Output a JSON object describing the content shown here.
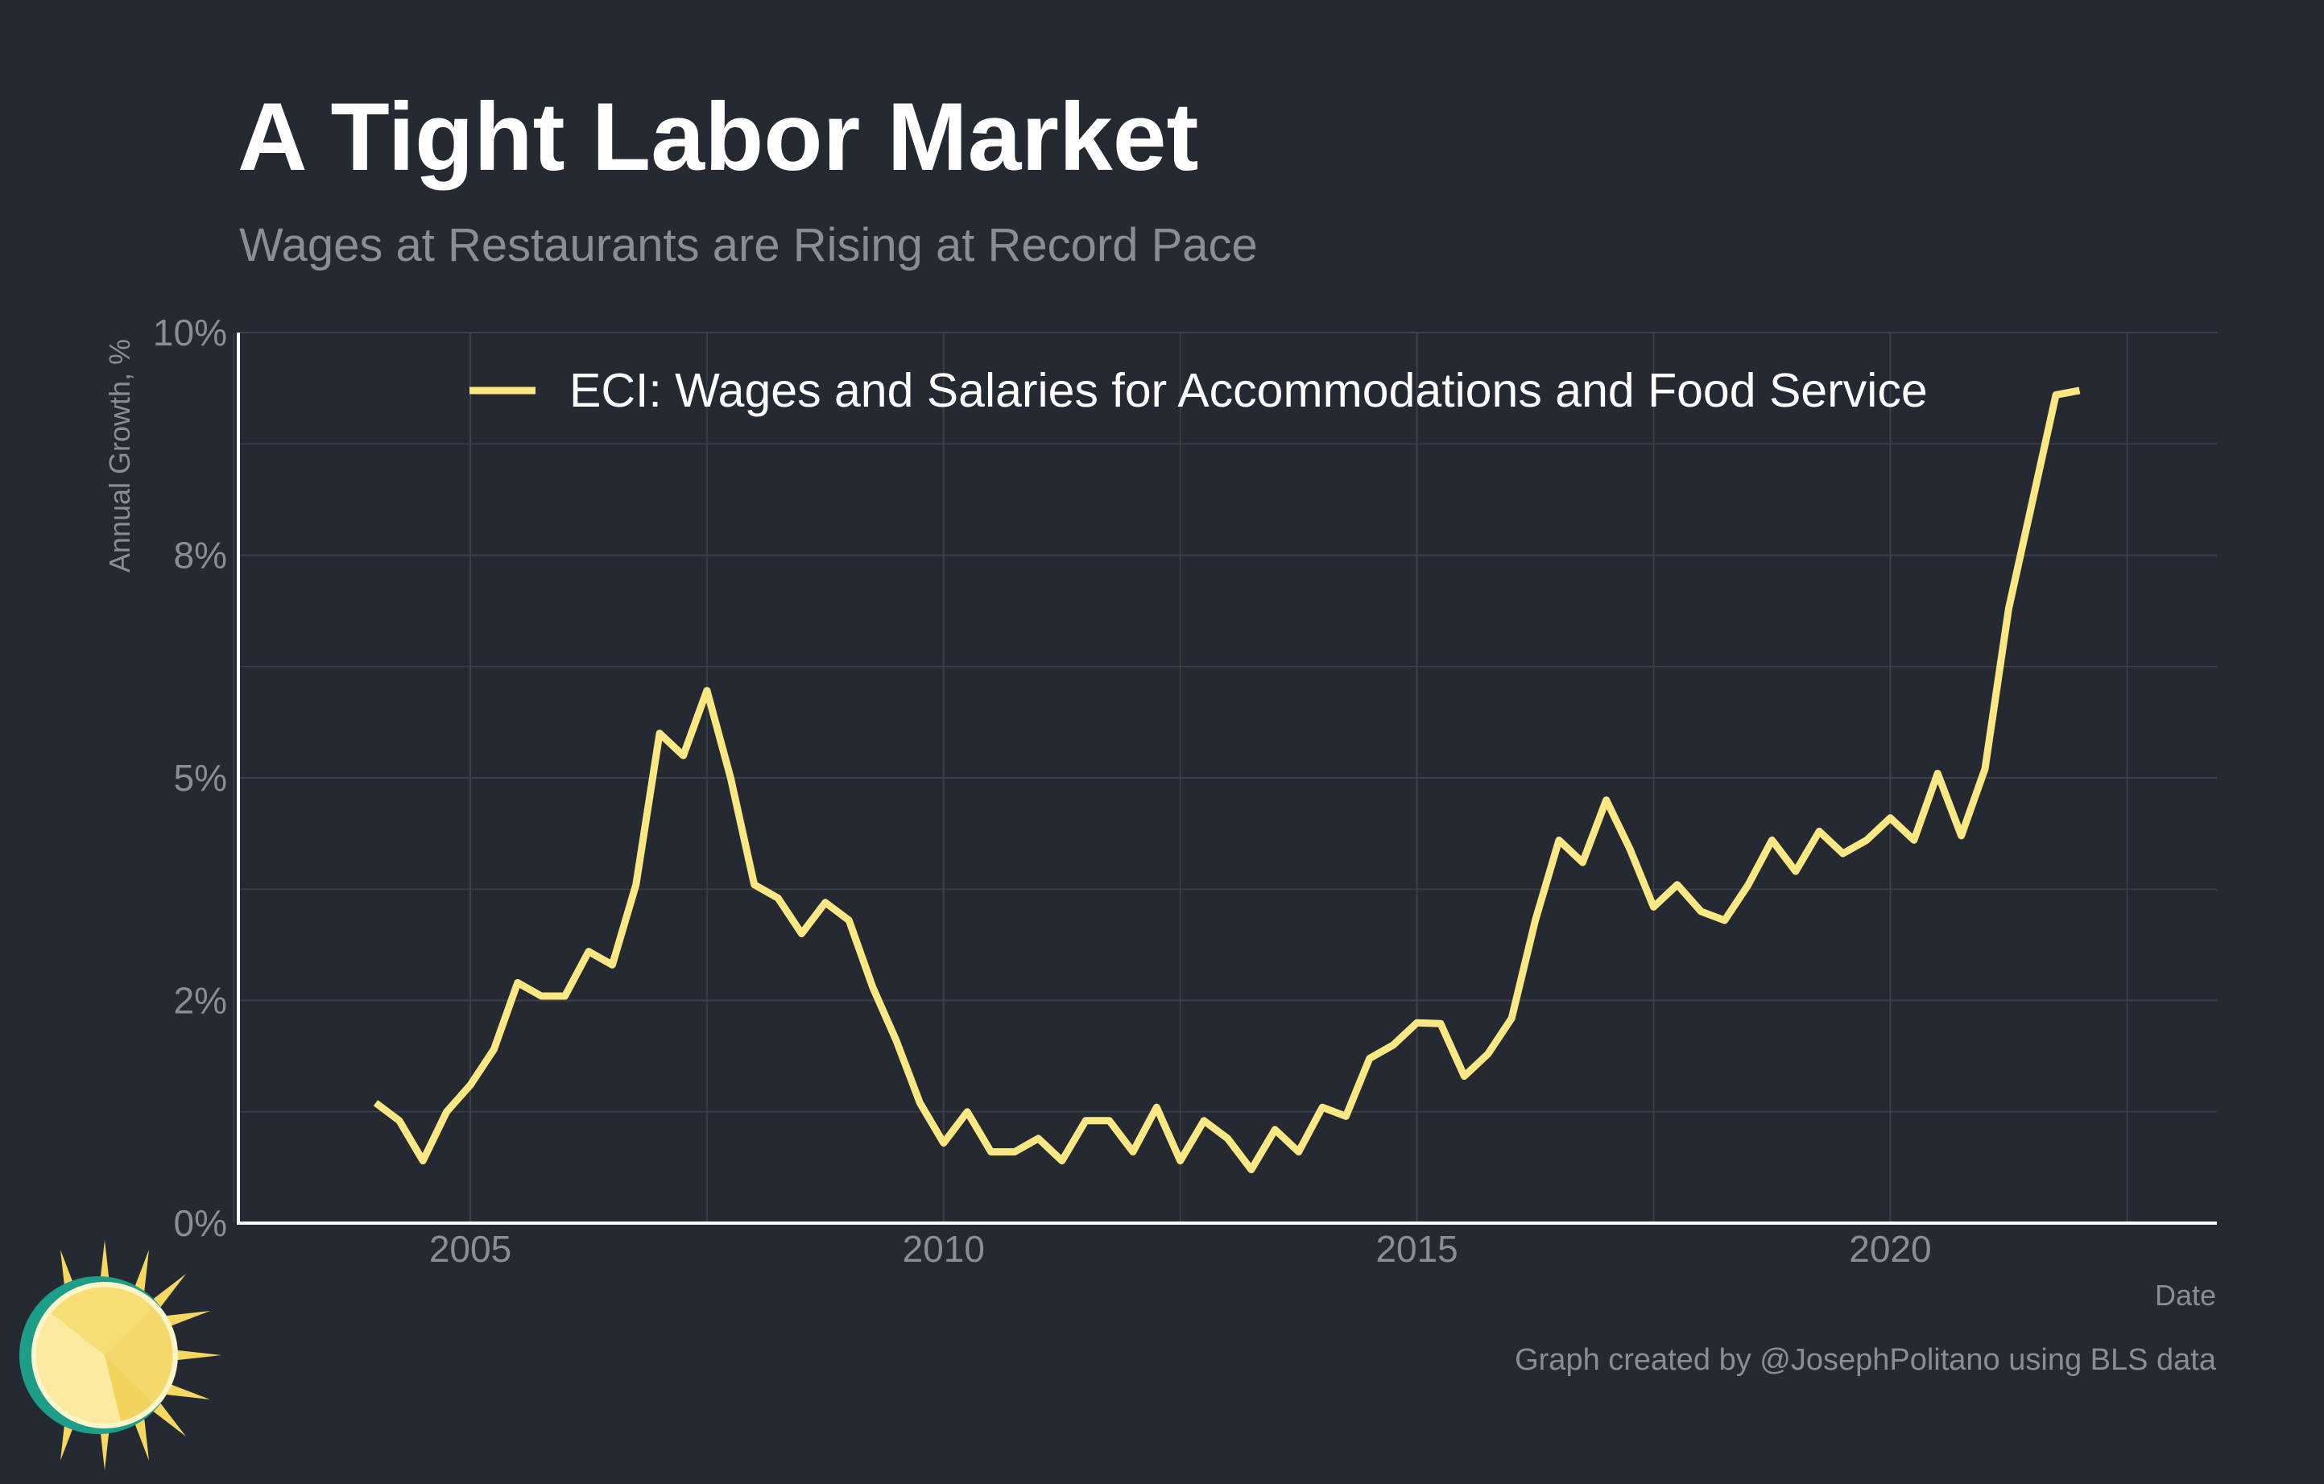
{
  "header": {
    "title": "A Tight Labor Market",
    "subtitle": "Wages at Restaurants are Rising at Record Pace"
  },
  "caption": "Graph created by @JosephPolitano using BLS data",
  "colors": {
    "background": "#252932",
    "line": "#fce883",
    "grid": "#3b404a",
    "axis": "#ffffff",
    "muted_text": "#8a8d94"
  },
  "logo": {
    "icon": "sun-icon"
  },
  "chart_data": {
    "type": "line",
    "title": "A Tight Labor Market",
    "subtitle": "Wages at Restaurants are Rising at Record Pace",
    "xlabel": "Date",
    "ylabel": "Annual Growth, %",
    "xlim": [
      2002.55,
      2023.45
    ],
    "ylim": [
      0,
      10
    ],
    "x_ticks": [
      2005,
      2010,
      2015,
      2020
    ],
    "x_tick_labels": [
      "2005",
      "2010",
      "2015",
      "2020"
    ],
    "y_ticks": [
      0,
      2.5,
      5,
      7.5,
      10
    ],
    "y_tick_labels": [
      "0%",
      "2%",
      "5%",
      "8%",
      "10%"
    ],
    "grid": true,
    "legend_position": "top",
    "series": [
      {
        "name": "ECI: Wages and Salaries for Accommodations and Food Service",
        "color": "#fce883",
        "x": [
          2004.0,
          2004.25,
          2004.5,
          2004.75,
          2005.0,
          2005.25,
          2005.5,
          2005.75,
          2006.0,
          2006.25,
          2006.5,
          2006.75,
          2007.0,
          2007.25,
          2007.5,
          2007.75,
          2008.0,
          2008.25,
          2008.5,
          2008.75,
          2009.0,
          2009.25,
          2009.5,
          2009.75,
          2010.0,
          2010.25,
          2010.5,
          2010.75,
          2011.0,
          2011.25,
          2011.5,
          2011.75,
          2012.0,
          2012.25,
          2012.5,
          2012.75,
          2013.0,
          2013.25,
          2013.5,
          2013.75,
          2014.0,
          2014.25,
          2014.5,
          2014.75,
          2015.0,
          2015.25,
          2015.5,
          2015.75,
          2016.0,
          2016.25,
          2016.5,
          2016.75,
          2017.0,
          2017.25,
          2017.5,
          2017.75,
          2018.0,
          2018.25,
          2018.5,
          2018.75,
          2019.0,
          2019.25,
          2019.5,
          2019.75,
          2020.0,
          2020.25,
          2020.5,
          2020.75,
          2021.0,
          2021.25,
          2021.5,
          2021.75,
          2022.0
        ],
        "values": [
          1.35,
          1.15,
          0.7,
          1.25,
          1.55,
          1.95,
          2.7,
          2.55,
          2.55,
          3.05,
          2.9,
          3.8,
          5.5,
          5.25,
          5.98,
          5.0,
          3.8,
          3.65,
          3.25,
          3.6,
          3.4,
          2.65,
          2.05,
          1.35,
          0.9,
          1.25,
          0.8,
          0.8,
          0.95,
          0.7,
          1.15,
          1.15,
          0.8,
          1.3,
          0.7,
          1.15,
          0.95,
          0.6,
          1.05,
          0.8,
          1.3,
          1.2,
          1.85,
          2.0,
          2.25,
          2.24,
          1.65,
          1.9,
          2.3,
          3.4,
          4.3,
          4.05,
          4.75,
          4.2,
          3.55,
          3.8,
          3.5,
          3.4,
          3.8,
          4.3,
          3.95,
          4.4,
          4.15,
          4.3,
          4.55,
          4.3,
          5.05,
          4.35,
          5.1,
          6.9,
          8.1,
          9.3,
          9.35
        ]
      }
    ]
  }
}
